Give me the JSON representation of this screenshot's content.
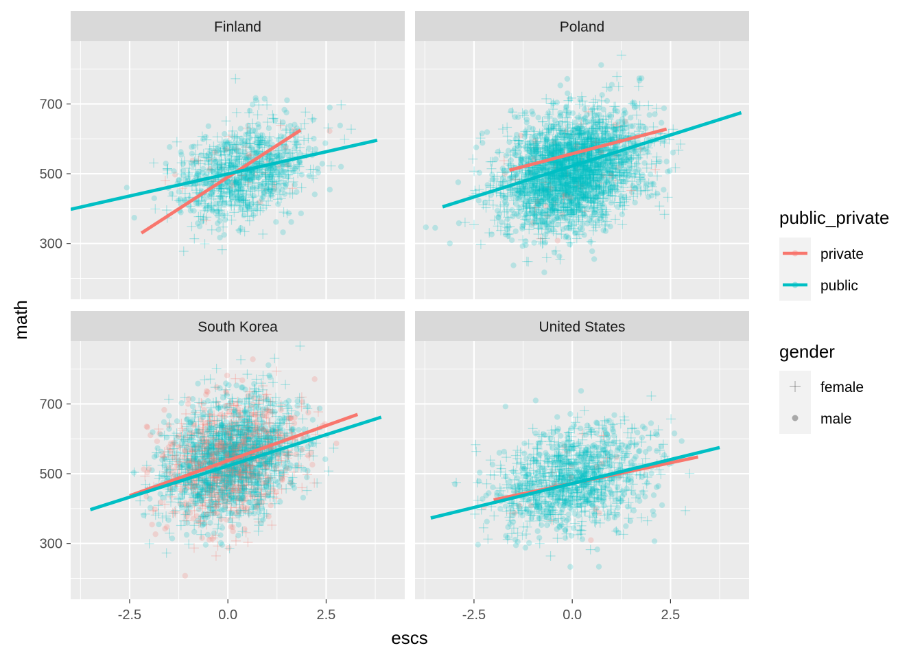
{
  "chart_data": {
    "type": "scatter",
    "xlabel": "escs",
    "ylabel": "math",
    "xlim": [
      -4.0,
      4.5
    ],
    "ylim": [
      140,
      880
    ],
    "x_ticks": [
      -2.5,
      0.0,
      2.5
    ],
    "x_tick_labels": [
      "-2.5",
      "0.0",
      "2.5"
    ],
    "y_ticks": [
      300,
      500,
      700
    ],
    "y_tick_labels": [
      "300",
      "500",
      "700"
    ],
    "grid": true,
    "facets": [
      {
        "name": "Finland",
        "lines": [
          {
            "group": "private",
            "x": [
              -2.2,
              1.85
            ],
            "y": [
              330,
              625
            ]
          },
          {
            "group": "public",
            "x": [
              -4.0,
              3.8
            ],
            "y": [
              398,
              596
            ]
          }
        ],
        "cloud": {
          "center": [
            0.4,
            505
          ],
          "spread": [
            0.85,
            70
          ],
          "n_public": 900,
          "n_private": 40
        }
      },
      {
        "name": "Poland",
        "lines": [
          {
            "group": "private",
            "x": [
              -1.6,
              2.4
            ],
            "y": [
              510,
              628
            ]
          },
          {
            "group": "public",
            "x": [
              -3.3,
              4.3
            ],
            "y": [
              405,
              675
            ]
          }
        ],
        "cloud": {
          "center": [
            0.0,
            510
          ],
          "spread": [
            0.9,
            80
          ],
          "n_public": 2600,
          "n_private": 60
        }
      },
      {
        "name": "South Korea",
        "lines": [
          {
            "group": "private",
            "x": [
              -2.5,
              3.3
            ],
            "y": [
              437,
              670
            ]
          },
          {
            "group": "public",
            "x": [
              -3.5,
              3.9
            ],
            "y": [
              397,
              662
            ]
          }
        ],
        "cloud": {
          "center": [
            0.1,
            540
          ],
          "spread": [
            0.85,
            85
          ],
          "n_public": 1500,
          "n_private": 900
        }
      },
      {
        "name": "United States",
        "lines": [
          {
            "group": "private",
            "x": [
              -2.0,
              3.2
            ],
            "y": [
              425,
              548
            ]
          },
          {
            "group": "public",
            "x": [
              -3.6,
              3.75
            ],
            "y": [
              373,
              575
            ]
          }
        ],
        "cloud": {
          "center": [
            0.0,
            480
          ],
          "spread": [
            1.0,
            75
          ],
          "n_public": 1100,
          "n_private": 25
        }
      }
    ],
    "legend": {
      "placement": "right",
      "public_private": {
        "title": "public_private",
        "items": [
          {
            "label": "private",
            "color": "#F8766D"
          },
          {
            "label": "public",
            "color": "#00BFC4"
          }
        ]
      },
      "gender": {
        "title": "gender",
        "items": [
          {
            "label": "female",
            "shape": "cross"
          },
          {
            "label": "male",
            "shape": "circle"
          }
        ]
      }
    }
  },
  "colors": {
    "panel_background": "#EBEBEB",
    "strip_background": "#D9D9D9",
    "grid_major": "#FFFFFF",
    "private": "#F8766D",
    "public": "#00BFC4"
  }
}
